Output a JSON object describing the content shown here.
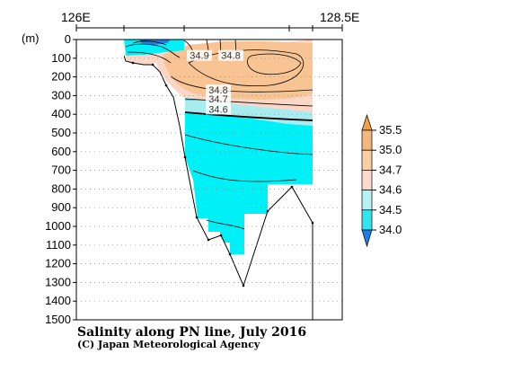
{
  "chart_data": {
    "type": "heatmap",
    "title": "Salinity along PN line, July 2016",
    "credit": "(C) Japan Meteorological Agency",
    "ylabel": "(m)",
    "ylim": [
      0,
      1500
    ],
    "y_ticks": [
      "0",
      "100",
      "200",
      "300",
      "400",
      "500",
      "600",
      "700",
      "800",
      "900",
      "1000",
      "1100",
      "1200",
      "1300",
      "1400",
      "1500"
    ],
    "x_range_labels": [
      "126E",
      "128.5E"
    ],
    "contour_labels": [
      {
        "value": "34.9",
        "depth": 85
      },
      {
        "value": "34.8",
        "depth": 85
      },
      {
        "value": "34.8",
        "depth": 270
      },
      {
        "value": "34.7",
        "depth": 318
      },
      {
        "value": "34.6",
        "depth": 372
      }
    ],
    "colorbar": {
      "levels": [
        "35.5",
        "35.0",
        "34.7",
        "34.6",
        "34.5",
        "34.0"
      ],
      "colors": [
        "#f2a24a",
        "#f5b87c",
        "#f8cfa2",
        "#fbd9cf",
        "#b6f1f4",
        "#32e6ee",
        "#1f7fe6"
      ]
    },
    "colors": {
      "deep": "#00f0f8",
      "mid": "#93e9ed",
      "pink": "#fcd7c7",
      "orange": "#f8c493",
      "bottom": "#ffffff"
    }
  }
}
